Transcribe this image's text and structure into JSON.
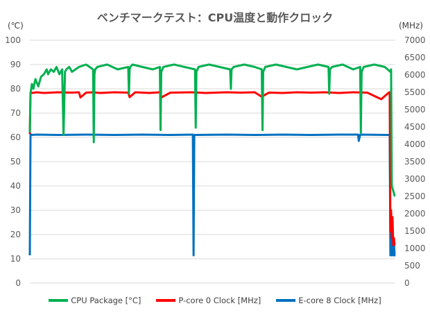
{
  "chart_data": {
    "type": "line",
    "title": "ベンチマークテスト：CPU温度と動作クロック",
    "ylabel_left": "(℃)",
    "ylabel_right": "(MHz)",
    "y_left": {
      "range": [
        0,
        100
      ],
      "ticks": [
        "0",
        "10",
        "20",
        "30",
        "40",
        "50",
        "60",
        "70",
        "80",
        "90",
        "100"
      ]
    },
    "y_right": {
      "range": [
        0,
        7000
      ],
      "ticks": [
        "0",
        "500",
        "1000",
        "1500",
        "2000",
        "2500",
        "3000",
        "3500",
        "4000",
        "4500",
        "5000",
        "5500",
        "6000",
        "6500",
        "7000"
      ]
    },
    "x_range": [
      0,
      520
    ],
    "grid": "horizontal",
    "legend_position": "bottom",
    "series": [
      {
        "name": "CPU Package [°C]",
        "axis": "left",
        "color": "#00b050",
        "x": [
          0,
          1,
          2,
          3,
          5,
          8,
          12,
          16,
          20,
          24,
          26,
          30,
          34,
          38,
          42,
          46,
          48,
          50,
          52,
          56,
          60,
          70,
          80,
          90,
          91,
          92,
          93,
          96,
          110,
          125,
          140,
          141,
          142,
          143,
          146,
          160,
          175,
          185,
          186,
          187,
          190,
          205,
          220,
          235,
          236,
          237,
          240,
          255,
          270,
          285,
          286,
          287,
          290,
          305,
          320,
          330,
          331,
          332,
          335,
          350,
          365,
          380,
          395,
          410,
          425,
          426,
          427,
          430,
          445,
          460,
          470,
          471,
          472,
          475,
          490,
          505,
          513,
          514,
          515,
          517,
          519,
          520
        ],
        "y": [
          62,
          78,
          80,
          82,
          80,
          84,
          81,
          85,
          86,
          88,
          86,
          88,
          87,
          89,
          86,
          88,
          61,
          87,
          88,
          89,
          87,
          89,
          90,
          88,
          58,
          86,
          88,
          89,
          90,
          88,
          89,
          78,
          88,
          89,
          90,
          89,
          88,
          89,
          63,
          87,
          89,
          90,
          89,
          88,
          64,
          87,
          89,
          90,
          89,
          88,
          80,
          88,
          89,
          90,
          89,
          88,
          63,
          87,
          89,
          90,
          89,
          88,
          89,
          90,
          89,
          78,
          88,
          89,
          90,
          88,
          89,
          62,
          87,
          89,
          90,
          89,
          87,
          88,
          40,
          38,
          36,
          36
        ]
      },
      {
        "name": "P-core 0 Clock [MHz]",
        "axis": "right",
        "color": "#ff0000",
        "x": [
          0,
          1,
          3,
          10,
          20,
          40,
          60,
          70,
          72,
          80,
          90,
          100,
          120,
          140,
          142,
          150,
          170,
          185,
          187,
          200,
          230,
          250,
          280,
          300,
          320,
          330,
          340,
          360,
          380,
          400,
          420,
          440,
          460,
          480,
          500,
          510,
          512,
          513,
          514,
          515,
          516,
          517,
          518,
          519,
          520
        ],
        "y": [
          4300,
          5500,
          5480,
          5500,
          5480,
          5500,
          5490,
          5500,
          5350,
          5490,
          5500,
          5480,
          5500,
          5490,
          5360,
          5500,
          5480,
          5500,
          5350,
          5490,
          5500,
          5480,
          5500,
          5490,
          5500,
          5370,
          5490,
          5480,
          5500,
          5490,
          5500,
          5480,
          5500,
          5490,
          5300,
          5480,
          5500,
          1500,
          2100,
          1300,
          1900,
          1100,
          1300,
          1100,
          1100
        ]
      },
      {
        "name": "E-core 8 Clock [MHz]",
        "axis": "right",
        "color": "#0070c0",
        "x": [
          0,
          1,
          2,
          10,
          40,
          80,
          120,
          160,
          200,
          232,
          233,
          234,
          280,
          320,
          360,
          400,
          440,
          467,
          468,
          470,
          510,
          512,
          513,
          514,
          515,
          516,
          517,
          518,
          519,
          520
        ],
        "y": [
          800,
          4300,
          4270,
          4280,
          4270,
          4280,
          4270,
          4280,
          4270,
          4280,
          800,
          4270,
          4280,
          4270,
          4280,
          4270,
          4280,
          4280,
          4100,
          4280,
          4270,
          4270,
          800,
          1700,
          800,
          1500,
          800,
          1200,
          800,
          800
        ]
      }
    ]
  }
}
